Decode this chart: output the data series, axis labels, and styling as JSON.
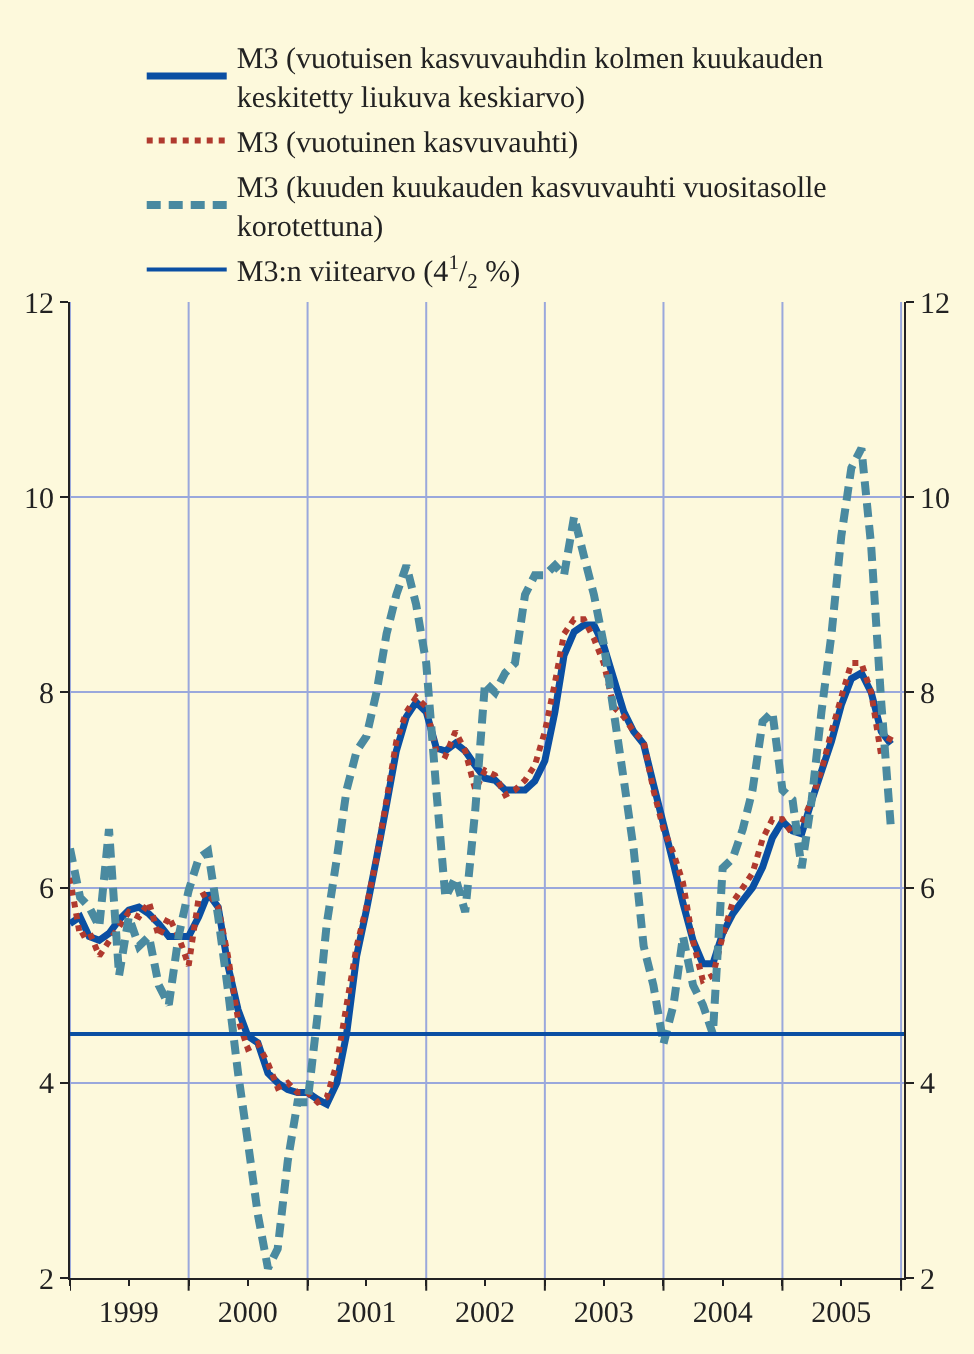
{
  "chart_data": {
    "type": "line",
    "x": [
      "1999-01",
      "1999-02",
      "1999-03",
      "1999-04",
      "1999-05",
      "1999-06",
      "1999-07",
      "1999-08",
      "1999-09",
      "1999-10",
      "1999-11",
      "1999-12",
      "2000-01",
      "2000-02",
      "2000-03",
      "2000-04",
      "2000-05",
      "2000-06",
      "2000-07",
      "2000-08",
      "2000-09",
      "2000-10",
      "2000-11",
      "2000-12",
      "2001-01",
      "2001-02",
      "2001-03",
      "2001-04",
      "2001-05",
      "2001-06",
      "2001-07",
      "2001-08",
      "2001-09",
      "2001-10",
      "2001-11",
      "2001-12",
      "2002-01",
      "2002-02",
      "2002-03",
      "2002-04",
      "2002-05",
      "2002-06",
      "2002-07",
      "2002-08",
      "2002-09",
      "2002-10",
      "2002-11",
      "2002-12",
      "2003-01",
      "2003-02",
      "2003-03",
      "2003-04",
      "2003-05",
      "2003-06",
      "2003-07",
      "2003-08",
      "2003-09",
      "2003-10",
      "2003-11",
      "2003-12",
      "2004-01",
      "2004-02",
      "2004-03",
      "2004-04",
      "2004-05",
      "2004-06",
      "2004-07",
      "2004-08",
      "2004-09",
      "2004-10",
      "2004-11",
      "2004-12",
      "2005-01",
      "2005-02",
      "2005-03",
      "2005-04",
      "2005-05",
      "2005-06",
      "2005-07",
      "2005-08",
      "2005-09",
      "2005-10",
      "2005-11",
      "2005-12"
    ],
    "series": [
      {
        "name": "M3 (vuotuisen kasvuvauhdin kolmen kuukauden keskitetty liukuva keskiarvo)",
        "color": "#0a4fa3",
        "line_style": "solid",
        "values": [
          5.63,
          5.7,
          5.5,
          5.46,
          5.53,
          5.67,
          5.77,
          5.8,
          5.73,
          5.63,
          5.5,
          5.5,
          5.5,
          5.7,
          5.94,
          5.8,
          5.2,
          4.75,
          4.48,
          4.41,
          4.1,
          4.0,
          3.93,
          3.9,
          3.9,
          3.83,
          3.78,
          4.0,
          4.5,
          5.3,
          5.77,
          6.3,
          6.85,
          7.4,
          7.75,
          7.9,
          7.8,
          7.43,
          7.4,
          7.48,
          7.4,
          7.25,
          7.12,
          7.1,
          7.0,
          7.0,
          7.0,
          7.09,
          7.3,
          7.8,
          8.38,
          8.62,
          8.69,
          8.69,
          8.48,
          8.14,
          7.8,
          7.6,
          7.47,
          7.06,
          6.65,
          6.24,
          5.84,
          5.46,
          5.22,
          5.22,
          5.53,
          5.73,
          5.87,
          6.0,
          6.21,
          6.51,
          6.68,
          6.58,
          6.55,
          6.89,
          7.19,
          7.5,
          7.87,
          8.14,
          8.2,
          8.0,
          7.6,
          7.47
        ]
      },
      {
        "name": "M3 (vuotuinen kasvuvauhti)",
        "color": "#b03a2e",
        "line_style": "dotted",
        "values": [
          6.1,
          5.5,
          5.55,
          5.3,
          5.45,
          5.6,
          5.75,
          5.7,
          5.85,
          5.5,
          5.7,
          5.5,
          5.2,
          5.9,
          5.95,
          5.8,
          5.3,
          4.65,
          4.35,
          4.4,
          4.2,
          3.95,
          4.0,
          3.9,
          3.9,
          3.8,
          3.85,
          4.2,
          4.8,
          5.4,
          5.8,
          6.3,
          6.9,
          7.5,
          7.8,
          7.95,
          7.85,
          7.4,
          7.35,
          7.6,
          7.4,
          7.0,
          7.2,
          7.15,
          6.95,
          7.0,
          7.1,
          7.25,
          7.6,
          8.1,
          8.6,
          8.75,
          8.75,
          8.55,
          8.3,
          7.85,
          7.75,
          7.6,
          7.5,
          7.0,
          6.6,
          6.35,
          6.05,
          5.45,
          5.05,
          5.1,
          5.5,
          5.85,
          6.0,
          6.15,
          6.5,
          6.7,
          6.7,
          6.55,
          6.65,
          6.9,
          7.2,
          7.6,
          7.95,
          8.3,
          8.3,
          8.0,
          7.35,
          7.55
        ]
      },
      {
        "name": "M3 (kuuden kuukauden kasvuvauhti vuositasolle korotettuna)",
        "color": "#4a8aa0",
        "line_style": "dashed",
        "values": [
          6.4,
          5.9,
          5.8,
          5.6,
          6.6,
          5.1,
          5.7,
          5.4,
          5.5,
          5.0,
          4.8,
          5.5,
          5.97,
          6.3,
          6.37,
          5.7,
          4.95,
          4.1,
          3.4,
          2.65,
          2.1,
          2.3,
          3.2,
          3.8,
          3.8,
          4.7,
          5.63,
          6.3,
          7.0,
          7.4,
          7.55,
          8.0,
          8.6,
          9.0,
          9.3,
          8.9,
          8.3,
          7.0,
          5.9,
          6.1,
          5.75,
          6.8,
          8.1,
          8.0,
          8.2,
          8.3,
          9.0,
          9.2,
          9.2,
          9.3,
          9.2,
          9.8,
          9.4,
          9.0,
          8.5,
          7.8,
          7.1,
          6.4,
          5.4,
          5.0,
          4.4,
          4.8,
          5.5,
          5.0,
          4.8,
          4.5,
          6.2,
          6.3,
          6.6,
          7.0,
          7.7,
          7.8,
          7.0,
          6.9,
          6.2,
          6.9,
          7.8,
          8.6,
          9.6,
          10.3,
          10.5,
          9.5,
          7.9,
          6.6
        ]
      }
    ],
    "ref_lines": [
      {
        "axis": "y",
        "value": 4.5,
        "label": "M3:n viitearvo (4$^{1}$/$_{2}$ %)",
        "color": "#0a4fa3",
        "line_style": "solid"
      }
    ],
    "xlim": [
      "1999-01-01",
      "2006-01-10"
    ],
    "xticks": [
      {
        "value": "1999-01-01",
        "label": null
      },
      {
        "value": "1999-07-01",
        "label": "1999"
      },
      {
        "value": "2000-01-01",
        "label": null
      },
      {
        "value": "2000-07-01",
        "label": "2000"
      },
      {
        "value": "2001-01-01",
        "label": null
      },
      {
        "value": "2001-07-01",
        "label": "2001"
      },
      {
        "value": "2002-01-01",
        "label": null
      },
      {
        "value": "2002-07-01",
        "label": "2002"
      },
      {
        "value": "2003-01-01",
        "label": null
      },
      {
        "value": "2003-07-01",
        "label": "2003"
      },
      {
        "value": "2004-01-01",
        "label": null
      },
      {
        "value": "2004-07-01",
        "label": "2004"
      },
      {
        "value": "2005-01-01",
        "label": null
      },
      {
        "value": "2005-07-01",
        "label": "2005"
      },
      {
        "value": "2006-01-01",
        "label": null
      }
    ],
    "ylim": [
      2,
      12
    ],
    "yticks": [
      2,
      4,
      6,
      8,
      10,
      12
    ],
    "y2lim": [
      2,
      12
    ],
    "y2ticks": [
      2,
      4,
      6,
      8,
      10,
      12
    ],
    "grid": true,
    "legend": "top",
    "marker": "none"
  }
}
